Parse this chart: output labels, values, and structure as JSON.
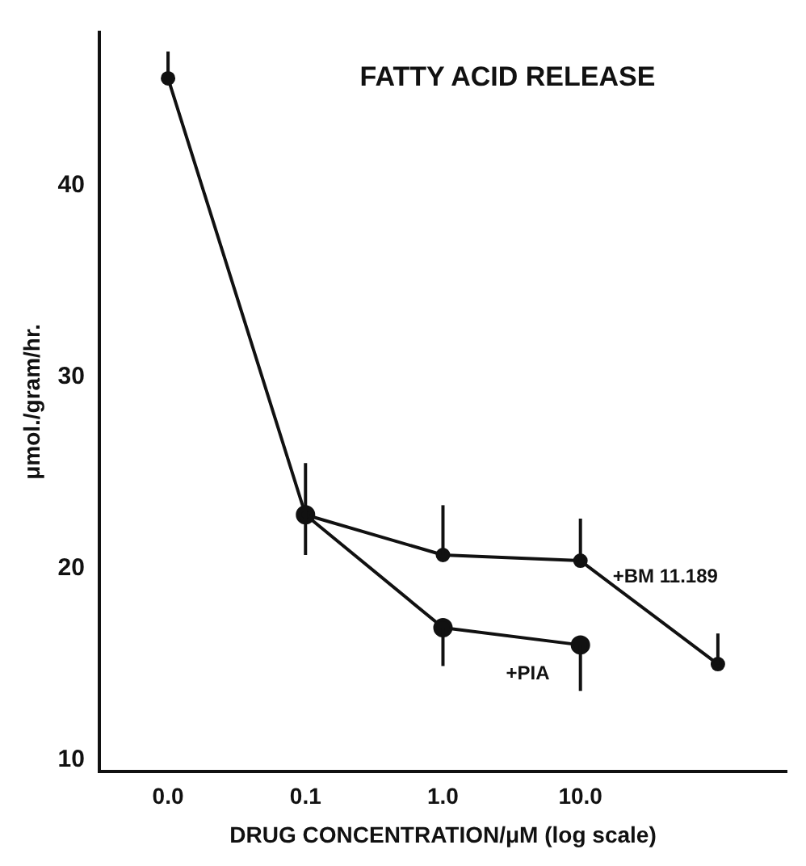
{
  "chart_data": {
    "type": "line",
    "title": "FATTY ACID RELEASE",
    "xlabel": "DRUG CONCENTRATION/μM (log scale)",
    "ylabel": "μmol./gram/hr.",
    "categories": [
      "0.0",
      "0.1",
      "1.0",
      "10.0",
      null
    ],
    "series": [
      {
        "name": "+BM 11.189",
        "color": "#111111",
        "values": [
          45.6,
          22.8,
          20.7,
          20.4,
          15.0
        ],
        "errors": [
          [
            45.6,
            47.0
          ],
          [
            20.7,
            25.5
          ],
          [
            20.7,
            23.3
          ],
          [
            20.4,
            22.6
          ],
          [
            15.0,
            16.6
          ]
        ]
      },
      {
        "name": "+PIA",
        "color": "#111111",
        "values": [
          null,
          22.8,
          16.9,
          16.0,
          null
        ],
        "errors": [
          null,
          null,
          [
            14.9,
            16.9
          ],
          [
            13.6,
            16.0
          ],
          null
        ]
      }
    ],
    "ylim": [
      9.4,
      48
    ],
    "yticks": [
      10,
      20,
      30,
      40
    ],
    "grid": false,
    "legend": false,
    "marker": "circle",
    "line_style": "solid"
  }
}
